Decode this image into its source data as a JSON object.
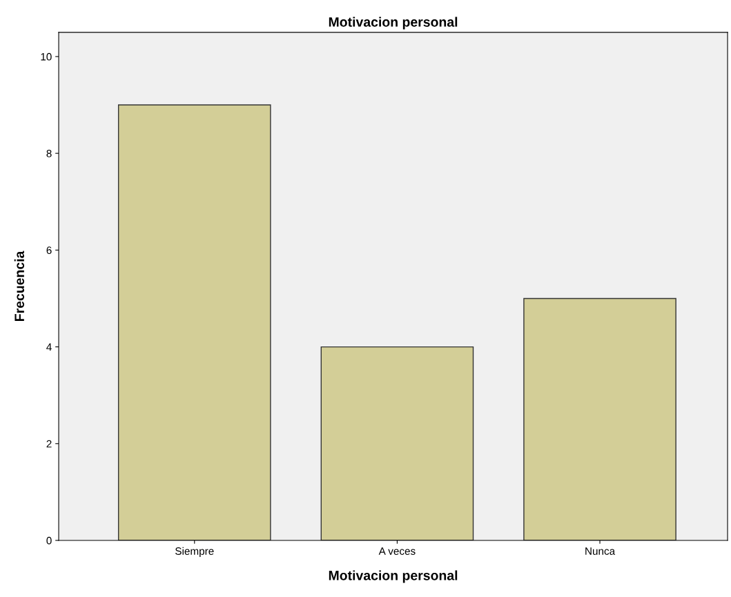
{
  "chart_data": {
    "type": "bar",
    "title": "Motivacion personal",
    "xlabel": "Motivacion personal",
    "ylabel": "Frecuencia",
    "categories": [
      "Siempre",
      "A veces",
      "Nunca"
    ],
    "values": [
      9,
      4,
      5
    ],
    "color": "#d3ce97",
    "ylim": [
      0,
      10.5
    ],
    "yticks": [
      0,
      2,
      4,
      6,
      8,
      10
    ],
    "grid": false
  }
}
